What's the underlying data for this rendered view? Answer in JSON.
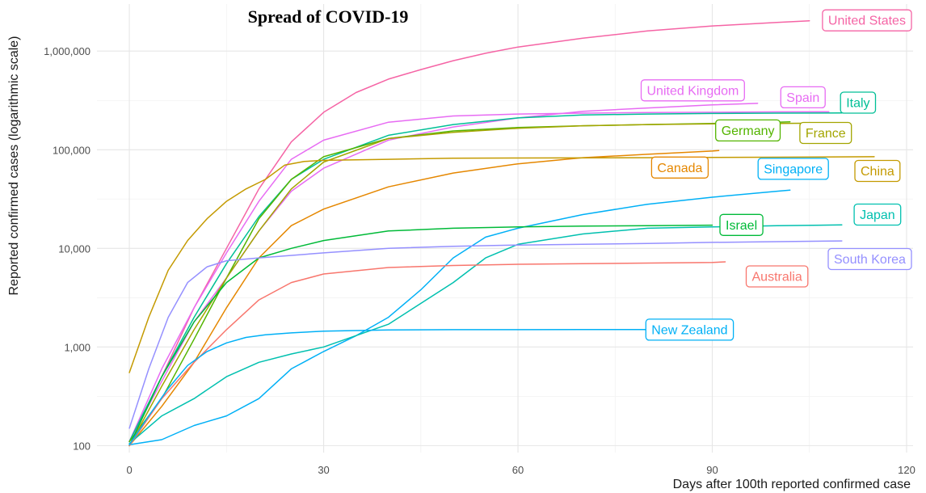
{
  "chart_data": {
    "type": "line",
    "title": "Spread of COVID-19",
    "xlabel": "Days after 100th reported confirmed case",
    "ylabel": "Reported confirmed cases (logarithmic scale)",
    "x_scale": "linear",
    "y_scale": "log10",
    "xlim": [
      -5,
      121
    ],
    "ylim": [
      85,
      3000000
    ],
    "x_ticks": [
      0,
      30,
      60,
      90,
      120
    ],
    "x_tick_labels": [
      "0",
      "30",
      "60",
      "90",
      "120"
    ],
    "y_ticks": [
      100,
      1000,
      10000,
      100000,
      1000000
    ],
    "y_tick_labels": [
      "100",
      "1,000",
      "10,000",
      "100,000",
      "1,000,000"
    ],
    "grid": true,
    "legend": "direct labels at the end of each line",
    "series": [
      {
        "name": "United States",
        "color": "#f564a5",
        "x": [
          0,
          5,
          10,
          15,
          20,
          25,
          30,
          35,
          40,
          45,
          50,
          55,
          60,
          70,
          80,
          90,
          100,
          105
        ],
        "y": [
          110,
          500,
          2500,
          10000,
          40000,
          120000,
          240000,
          380000,
          520000,
          650000,
          800000,
          950000,
          1100000,
          1350000,
          1600000,
          1800000,
          1950000,
          2030000
        ]
      },
      {
        "name": "United Kingdom",
        "color": "#e76bf3",
        "x": [
          0,
          5,
          10,
          15,
          20,
          25,
          30,
          40,
          50,
          60,
          70,
          80,
          90,
          97
        ],
        "y": [
          110,
          450,
          1800,
          5000,
          15000,
          38000,
          65000,
          125000,
          170000,
          210000,
          245000,
          265000,
          285000,
          295000
        ]
      },
      {
        "name": "Spain",
        "color": "#e76bf3",
        "x": [
          0,
          5,
          10,
          15,
          20,
          25,
          30,
          40,
          50,
          60,
          70,
          80,
          90,
          100,
          108
        ],
        "y": [
          110,
          600,
          2500,
          9000,
          30000,
          80000,
          125000,
          190000,
          220000,
          230000,
          235000,
          238000,
          240000,
          242000,
          243000
        ]
      },
      {
        "name": "Italy",
        "color": "#00bf96",
        "x": [
          0,
          5,
          10,
          15,
          20,
          25,
          30,
          40,
          50,
          60,
          70,
          80,
          90,
          100,
          110
        ],
        "y": [
          110,
          500,
          2000,
          7000,
          21000,
          50000,
          80000,
          140000,
          180000,
          210000,
          225000,
          230000,
          233000,
          235000,
          236000
        ]
      },
      {
        "name": "Germany",
        "color": "#53b400",
        "x": [
          0,
          5,
          10,
          15,
          20,
          25,
          30,
          40,
          50,
          60,
          70,
          80,
          90,
          100,
          102
        ],
        "y": [
          110,
          300,
          1200,
          5000,
          20000,
          50000,
          85000,
          130000,
          155000,
          168000,
          175000,
          180000,
          185000,
          190000,
          192000
        ]
      },
      {
        "name": "France",
        "color": "#a3a500",
        "x": [
          0,
          5,
          10,
          15,
          20,
          25,
          30,
          40,
          50,
          60,
          70,
          80,
          90,
          100,
          106
        ],
        "y": [
          100,
          400,
          1500,
          5000,
          15000,
          40000,
          75000,
          130000,
          150000,
          165000,
          175000,
          180000,
          183000,
          185000,
          186000
        ]
      },
      {
        "name": "Canada",
        "color": "#e58700",
        "x": [
          0,
          5,
          10,
          15,
          20,
          25,
          30,
          40,
          50,
          60,
          70,
          80,
          90,
          91
        ],
        "y": [
          100,
          250,
          700,
          2500,
          8000,
          17000,
          25000,
          42000,
          58000,
          72000,
          83000,
          90000,
          97000,
          98000
        ]
      },
      {
        "name": "China",
        "color": "#c49a00",
        "x": [
          0,
          3,
          6,
          9,
          12,
          15,
          18,
          21,
          24,
          27,
          30,
          40,
          50,
          60,
          80,
          100,
          115
        ],
        "y": [
          550,
          2000,
          6000,
          12000,
          20000,
          30000,
          40000,
          50000,
          70000,
          76000,
          78000,
          80000,
          82000,
          82500,
          83000,
          84000,
          85000
        ]
      },
      {
        "name": "Singapore",
        "color": "#00b0f6",
        "x": [
          0,
          5,
          10,
          15,
          20,
          25,
          30,
          35,
          40,
          45,
          50,
          55,
          60,
          70,
          80,
          90,
          100,
          102
        ],
        "y": [
          102,
          115,
          160,
          200,
          300,
          600,
          900,
          1300,
          2000,
          3800,
          8000,
          13000,
          16000,
          22000,
          28000,
          33000,
          38000,
          39000
        ]
      },
      {
        "name": "Japan",
        "color": "#00c0af",
        "x": [
          0,
          5,
          10,
          15,
          20,
          25,
          30,
          40,
          50,
          55,
          60,
          70,
          80,
          90,
          100,
          110
        ],
        "y": [
          105,
          200,
          300,
          500,
          700,
          850,
          1000,
          1700,
          4500,
          8000,
          11000,
          14000,
          16000,
          16500,
          17000,
          17300
        ]
      },
      {
        "name": "Israel",
        "color": "#00ba38",
        "x": [
          0,
          5,
          10,
          15,
          20,
          25,
          30,
          40,
          50,
          60,
          70,
          80,
          90
        ],
        "y": [
          100,
          500,
          1800,
          4500,
          8000,
          10000,
          12000,
          15000,
          16000,
          16500,
          16800,
          17000,
          17200
        ]
      },
      {
        "name": "South Korea",
        "color": "#9590ff",
        "x": [
          0,
          3,
          6,
          9,
          12,
          15,
          20,
          30,
          40,
          50,
          60,
          70,
          80,
          90,
          100,
          110
        ],
        "y": [
          150,
          600,
          2000,
          4500,
          6500,
          7500,
          8000,
          9000,
          10000,
          10500,
          10800,
          11000,
          11200,
          11500,
          11700,
          11900
        ]
      },
      {
        "name": "Australia",
        "color": "#f8766d",
        "x": [
          0,
          5,
          10,
          15,
          20,
          25,
          30,
          40,
          50,
          60,
          70,
          80,
          90,
          92
        ],
        "y": [
          100,
          300,
          700,
          1500,
          3000,
          4500,
          5500,
          6400,
          6700,
          6900,
          7000,
          7100,
          7200,
          7300
        ]
      },
      {
        "name": "New Zealand",
        "color": "#00b0f6",
        "x": [
          0,
          3,
          6,
          9,
          12,
          15,
          18,
          21,
          25,
          30,
          40,
          50,
          60,
          70,
          80
        ],
        "y": [
          102,
          200,
          380,
          650,
          900,
          1100,
          1250,
          1330,
          1390,
          1450,
          1490,
          1500,
          1500,
          1504,
          1504
        ]
      }
    ],
    "labels": [
      {
        "text": "United States",
        "color": "#f564a5",
        "at_x": 112,
        "at_y": 2050000,
        "anchor": "start"
      },
      {
        "text": "United Kingdom",
        "color": "#e76bf3",
        "at_x": 87,
        "at_y": 400000,
        "anchor": "center"
      },
      {
        "text": "Spain",
        "color": "#e76bf3",
        "at_x": 104,
        "at_y": 340000,
        "anchor": "center"
      },
      {
        "text": "Italy",
        "color": "#00bf96",
        "at_x": 112.5,
        "at_y": 300000,
        "anchor": "center"
      },
      {
        "text": "Germany",
        "color": "#53b400",
        "at_x": 95.5,
        "at_y": 157000,
        "anchor": "center"
      },
      {
        "text": "France",
        "color": "#a3a500",
        "at_x": 107.5,
        "at_y": 148000,
        "anchor": "center"
      },
      {
        "text": "Canada",
        "color": "#e58700",
        "at_x": 85,
        "at_y": 66000,
        "anchor": "center"
      },
      {
        "text": "Singapore",
        "color": "#00b0f6",
        "at_x": 102.5,
        "at_y": 64000,
        "anchor": "center"
      },
      {
        "text": "China",
        "color": "#c49a00",
        "at_x": 115.5,
        "at_y": 61000,
        "anchor": "center"
      },
      {
        "text": "Japan",
        "color": "#00c0af",
        "at_x": 115.5,
        "at_y": 22000,
        "anchor": "center"
      },
      {
        "text": "Israel",
        "color": "#00ba38",
        "at_x": 94.5,
        "at_y": 17300,
        "anchor": "center"
      },
      {
        "text": "South Korea",
        "color": "#9590ff",
        "at_x": 115.5,
        "at_y": 7800,
        "anchor": "center"
      },
      {
        "text": "Australia",
        "color": "#f8766d",
        "at_x": 100,
        "at_y": 5200,
        "anchor": "center"
      },
      {
        "text": "New Zealand",
        "color": "#00b0f6",
        "at_x": 86.5,
        "at_y": 1500,
        "anchor": "center"
      }
    ]
  }
}
